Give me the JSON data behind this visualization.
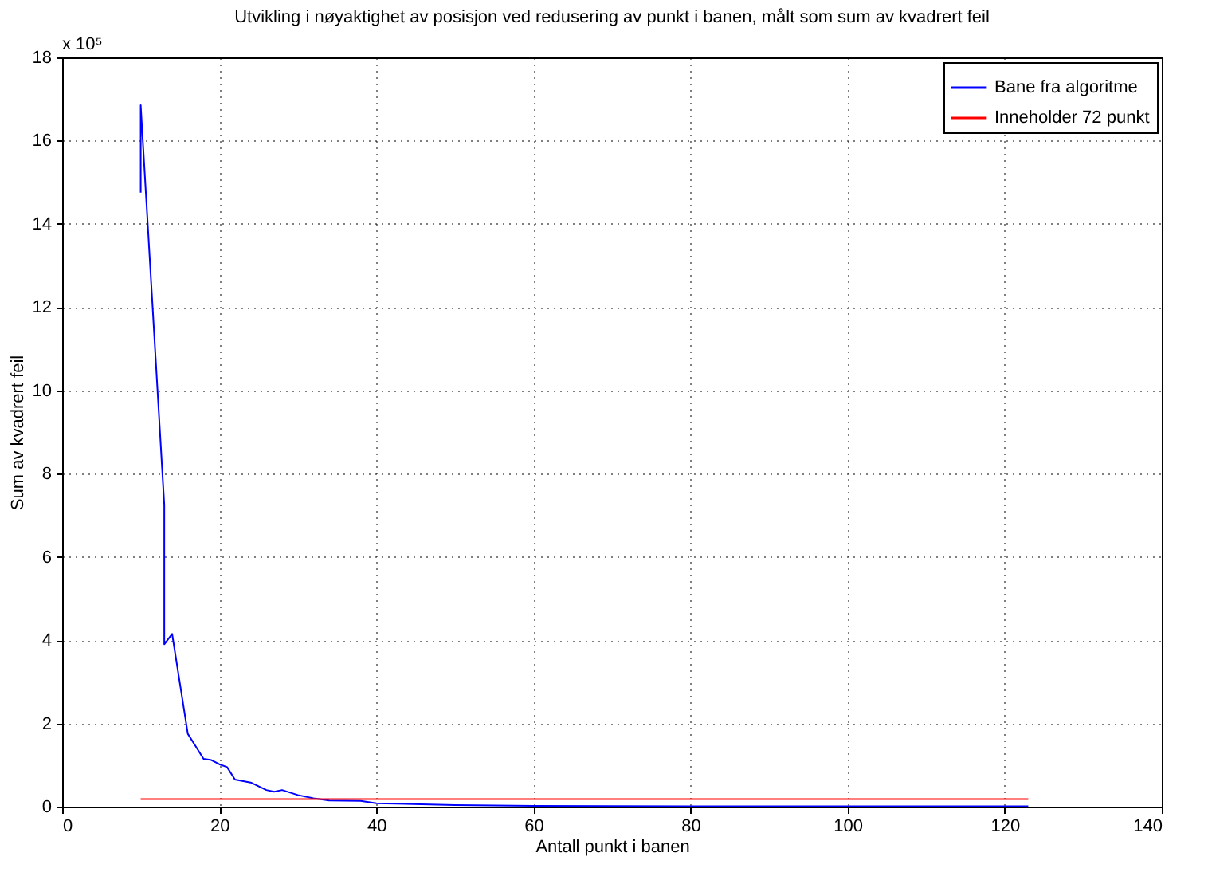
{
  "chart_data": {
    "type": "line",
    "title": "Utvikling i nøyaktighet av posisjon ved redusering av punkt i banen, målt som sum av kvadrert feil",
    "xlabel": "Antall punkt i banen",
    "ylabel": "Sum av kvadrert feil",
    "annotations": [
      "x 10⁵"
    ],
    "xlim": [
      0,
      140
    ],
    "xticks": [
      0,
      20,
      40,
      60,
      80,
      100,
      120,
      140
    ],
    "ylim": [
      0,
      18
    ],
    "yticks": [
      0,
      2,
      4,
      6,
      8,
      10,
      12,
      14,
      16,
      18
    ],
    "grid": true,
    "legend": "top right",
    "line_style": "solid",
    "marker": "none",
    "series": [
      {
        "name": "Bane fra algoritme",
        "color": "#0000ff",
        "x": [
          10,
          10,
          13,
          13,
          14,
          16,
          17,
          18,
          19,
          20,
          21,
          22,
          24,
          26,
          27,
          28,
          30,
          32,
          34,
          38,
          40,
          50,
          60,
          80,
          100,
          123
        ],
        "values": [
          14.75,
          16.85,
          7.25,
          3.9,
          4.15,
          1.75,
          1.45,
          1.15,
          1.12,
          1.02,
          0.95,
          0.65,
          0.58,
          0.4,
          0.36,
          0.4,
          0.28,
          0.2,
          0.15,
          0.14,
          0.08,
          0.04,
          0.02,
          0.01,
          0.01,
          0.01
        ]
      },
      {
        "name": "Inneholder 72 punkt",
        "color": "#ff0000",
        "x": [
          10,
          123
        ],
        "values": [
          0.18,
          0.18
        ]
      }
    ]
  }
}
